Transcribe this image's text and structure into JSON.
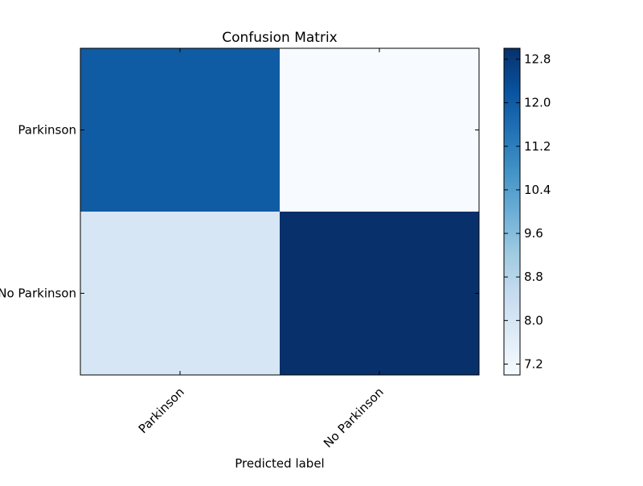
{
  "chart_data": {
    "type": "heatmap",
    "title": "Confusion Matrix",
    "xlabel": "Predicted label",
    "ylabel": "",
    "x_categories": [
      "Parkinson",
      "No Parkinson"
    ],
    "y_categories": [
      "Parkinson",
      "No Parkinson"
    ],
    "values": [
      [
        12.0,
        7.0
      ],
      [
        8.0,
        13.0
      ]
    ],
    "colormap": "Blues",
    "colorbar": {
      "range": [
        7.0,
        13.0
      ],
      "ticks": [
        7.2,
        8.0,
        8.8,
        9.6,
        10.4,
        11.2,
        12.0,
        12.8
      ],
      "tick_labels": [
        "7.2",
        "8.0",
        "8.8",
        "9.6",
        "10.4",
        "11.2",
        "12.0",
        "12.8"
      ]
    },
    "grid": false
  }
}
